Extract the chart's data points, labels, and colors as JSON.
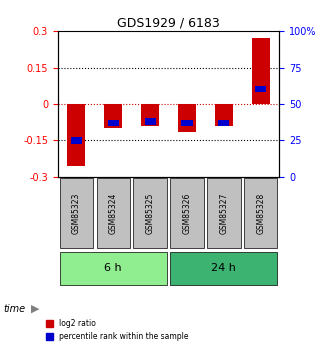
{
  "title": "GDS1929 / 6183",
  "samples": [
    "GSM85323",
    "GSM85324",
    "GSM85325",
    "GSM85326",
    "GSM85327",
    "GSM85328"
  ],
  "log2_ratios": [
    -0.255,
    -0.1,
    -0.09,
    -0.115,
    -0.09,
    0.27
  ],
  "log2_bar_bottoms": [
    0,
    0,
    0,
    0,
    0,
    0
  ],
  "percentile_ranks": [
    25,
    37,
    38,
    37,
    37,
    60
  ],
  "ylim": [
    -0.3,
    0.3
  ],
  "yticks_left": [
    -0.3,
    -0.15,
    0,
    0.15,
    0.3
  ],
  "yticks_right": [
    0,
    25,
    50,
    75,
    100
  ],
  "groups": [
    {
      "label": "6 h",
      "samples": [
        "GSM85323",
        "GSM85324",
        "GSM85325"
      ],
      "color": "#90EE90"
    },
    {
      "label": "24 h",
      "samples": [
        "GSM85326",
        "GSM85327",
        "GSM85328"
      ],
      "color": "#3CB371"
    }
  ],
  "time_label": "time",
  "bar_color_log2": "#CC0000",
  "bar_color_pct": "#0000CC",
  "group_bg_light": "#90EE90",
  "group_bg_dark": "#3CB371",
  "sample_box_color": "#C0C0C0",
  "bar_width": 0.5,
  "background_color": "#FFFFFF",
  "dotted_line_color_red": "#CC0000",
  "dotted_line_color_black": "#000000",
  "legend_log2_label": "log2 ratio",
  "legend_pct_label": "percentile rank within the sample"
}
